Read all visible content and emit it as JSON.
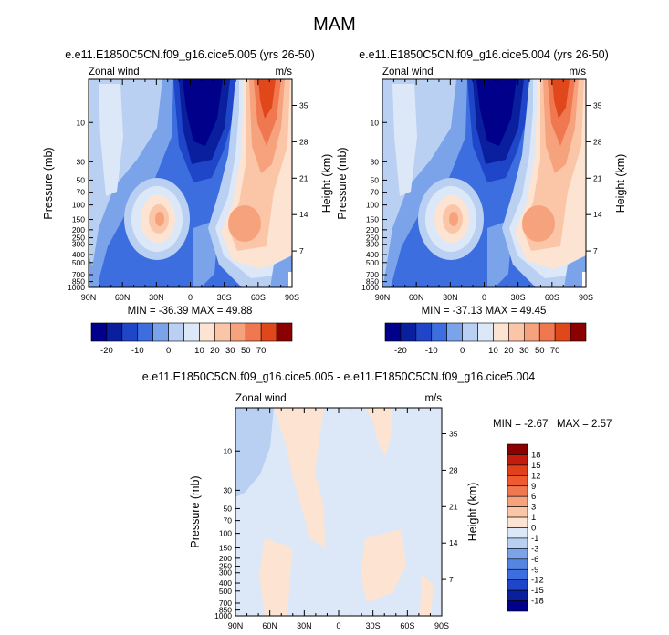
{
  "title": "MAM",
  "colors": {
    "neg20": "#00008b",
    "neg15": "#0a1f9e",
    "neg10": "#1f46c8",
    "neg5": "#3d6ee0",
    "neg0": "#7aa3ea",
    "pos0": "#b9d0f2",
    "pos5": "#dce8f8",
    "pos10": "#fde4d2",
    "pos15": "#fbc6a8",
    "pos20": "#f6a27d",
    "pos30": "#f07850",
    "pos50": "#e0481c",
    "pos70": "#8b0000"
  },
  "chart_data": [
    {
      "type": "heatmap",
      "title": "e.e11.E1850C5CN.f09_g16.cice5.005 (yrs 26-50)",
      "left_label": "Zonal wind",
      "right_label": "m/s",
      "ylabel": "Pressure (mb)",
      "ylabel_right": "Height (km)",
      "xticks": [
        "90N",
        "60N",
        "30N",
        "0",
        "30S",
        "60S",
        "90S"
      ],
      "yticks": [
        "10",
        "30",
        "50",
        "70",
        "100",
        "150",
        "200",
        "250",
        "300",
        "400",
        "500",
        "700",
        "850",
        "1000"
      ],
      "height_ticks": [
        "35",
        "28",
        "21",
        "14",
        "7"
      ],
      "stats": "MIN = -36.39  MAX = 49.88",
      "colorbar_labels": [
        "-20",
        "-10",
        "0",
        "10",
        "20",
        "30",
        "50",
        "70"
      ]
    },
    {
      "type": "heatmap",
      "title": "e.e11.E1850C5CN.f09_g16.cice5.004 (yrs 26-50)",
      "left_label": "Zonal wind",
      "right_label": "m/s",
      "ylabel": "Pressure (mb)",
      "ylabel_right": "Height (km)",
      "xticks": [
        "90N",
        "60N",
        "30N",
        "0",
        "30S",
        "60S",
        "90S"
      ],
      "yticks": [
        "10",
        "30",
        "50",
        "70",
        "100",
        "150",
        "200",
        "250",
        "300",
        "400",
        "500",
        "700",
        "850",
        "1000"
      ],
      "height_ticks": [
        "35",
        "28",
        "21",
        "14",
        "7"
      ],
      "stats": "MIN = -37.13  MAX = 49.45",
      "colorbar_labels": [
        "-20",
        "-10",
        "0",
        "10",
        "20",
        "30",
        "50",
        "70"
      ]
    },
    {
      "type": "heatmap",
      "title": "e.e11.E1850C5CN.f09_g16.cice5.005 - e.e11.E1850C5CN.f09_g16.cice5.004",
      "left_label": "Zonal wind",
      "right_label": "m/s",
      "ylabel": "Pressure (mb)",
      "ylabel_right": "Height (km)",
      "xticks": [
        "90N",
        "60N",
        "30N",
        "0",
        "30S",
        "60S",
        "90S"
      ],
      "yticks": [
        "10",
        "30",
        "50",
        "70",
        "100",
        "150",
        "200",
        "250",
        "300",
        "400",
        "500",
        "700",
        "850",
        "1000"
      ],
      "height_ticks": [
        "35",
        "28",
        "21",
        "14",
        "7"
      ],
      "stats_min": "MIN = -2.67",
      "stats_max": "MAX =  2.57",
      "colorbar_labels": [
        "18",
        "15",
        "12",
        "9",
        "6",
        "3",
        "1",
        "0",
        "-1",
        "-3",
        "-6",
        "-9",
        "-12",
        "-15",
        "-18"
      ]
    }
  ]
}
